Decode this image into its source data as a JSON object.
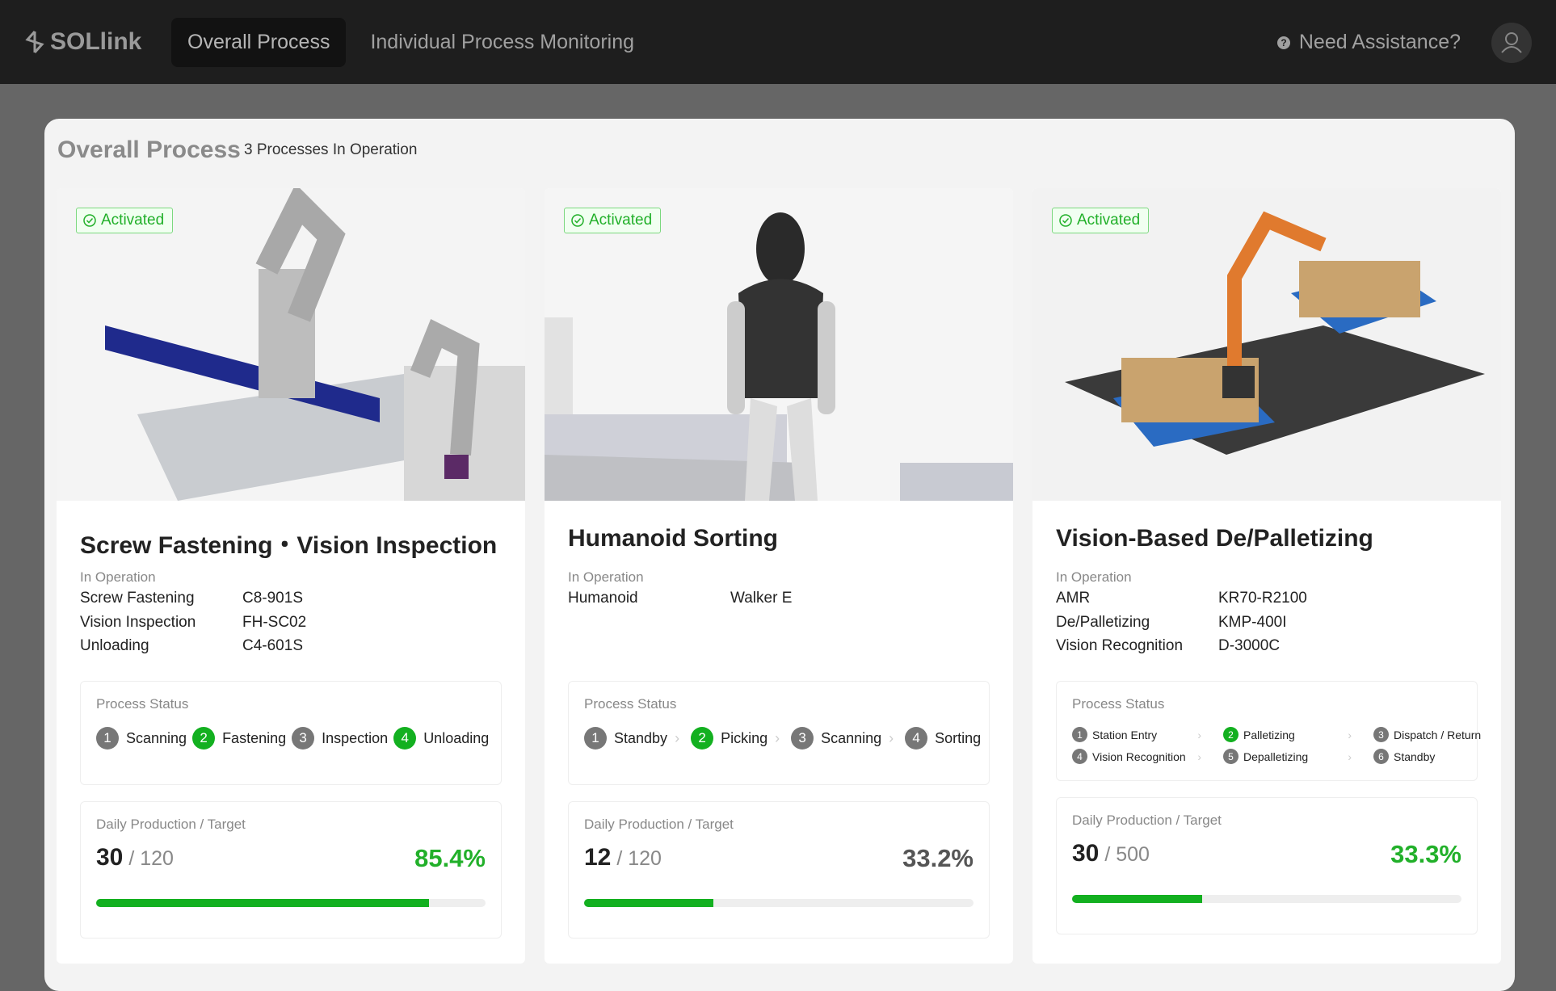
{
  "header": {
    "logo": "SOLlink",
    "nav": [
      "Overall Process",
      "Individual Process Monitoring"
    ],
    "active_nav": 0,
    "help": "Need Assistance?"
  },
  "page": {
    "title": "Overall Process",
    "subtitle": "3 Processes In Operation"
  },
  "cards": [
    {
      "badge": "Activated",
      "title": "Screw Fastening・Vision Inspection",
      "equipment_label": "In Operation",
      "equipment": [
        [
          "Screw Fastening",
          "C8-901S"
        ],
        [
          "Vision Inspection",
          "FH-SC02"
        ],
        [
          "Unloading",
          "C4-601S"
        ]
      ],
      "status_label": "Process Status",
      "status_layout": "row",
      "steps": [
        {
          "number": 1,
          "label": "Scanning",
          "active": false
        },
        {
          "number": 2,
          "label": "Fastening",
          "active": true
        },
        {
          "number": 3,
          "label": "Inspection",
          "active": false
        },
        {
          "number": 4,
          "label": "Unloading",
          "active": true
        }
      ],
      "production_label": "Daily Production / Target",
      "production": 30,
      "target": 120,
      "rate": {
        "value": 85.4,
        "label": "85.4%"
      },
      "rate_color": "#22b02a"
    },
    {
      "badge": "Activated",
      "title": "Humanoid Sorting",
      "equipment_label": "In Operation",
      "equipment": [
        [
          "Humanoid",
          "Walker E"
        ]
      ],
      "status_label": "Process Status",
      "status_layout": "row",
      "steps": [
        {
          "number": 1,
          "label": "Standby",
          "active": false
        },
        {
          "number": 2,
          "label": "Picking",
          "active": true
        },
        {
          "number": 3,
          "label": "Scanning",
          "active": false
        },
        {
          "number": 4,
          "label": "Sorting",
          "active": false
        }
      ],
      "production_label": "Daily Production / Target",
      "production": 12,
      "target": 120,
      "rate": {
        "value": 33.2,
        "label": "33.2%"
      },
      "rate_color": "#555555"
    },
    {
      "badge": "Activated",
      "title": "Vision-Based De/Palletizing",
      "equipment_label": "In Operation",
      "equipment": [
        [
          "AMR",
          "KR70-R2100"
        ],
        [
          "De/Palletizing",
          "KMP-400I"
        ],
        [
          "Vision Recognition",
          "D-3000C"
        ]
      ],
      "status_label": "Process Status",
      "status_layout": "grid",
      "steps": [
        {
          "number": 1,
          "label": "Station Entry",
          "active": false
        },
        {
          "number": 2,
          "label": "Palletizing",
          "active": true
        },
        {
          "number": 3,
          "label": "Dispatch / Return",
          "active": false
        },
        {
          "number": 4,
          "label": "Vision Recognition",
          "active": false
        },
        {
          "number": 5,
          "label": "Depalletizing",
          "active": false
        },
        {
          "number": 6,
          "label": "Standby",
          "active": false
        }
      ],
      "production_label": "Daily Production / Target",
      "production": 30,
      "target": 500,
      "rate": {
        "value": 33.3,
        "label": "33.3%"
      },
      "rate_color": "#22b02a"
    }
  ]
}
